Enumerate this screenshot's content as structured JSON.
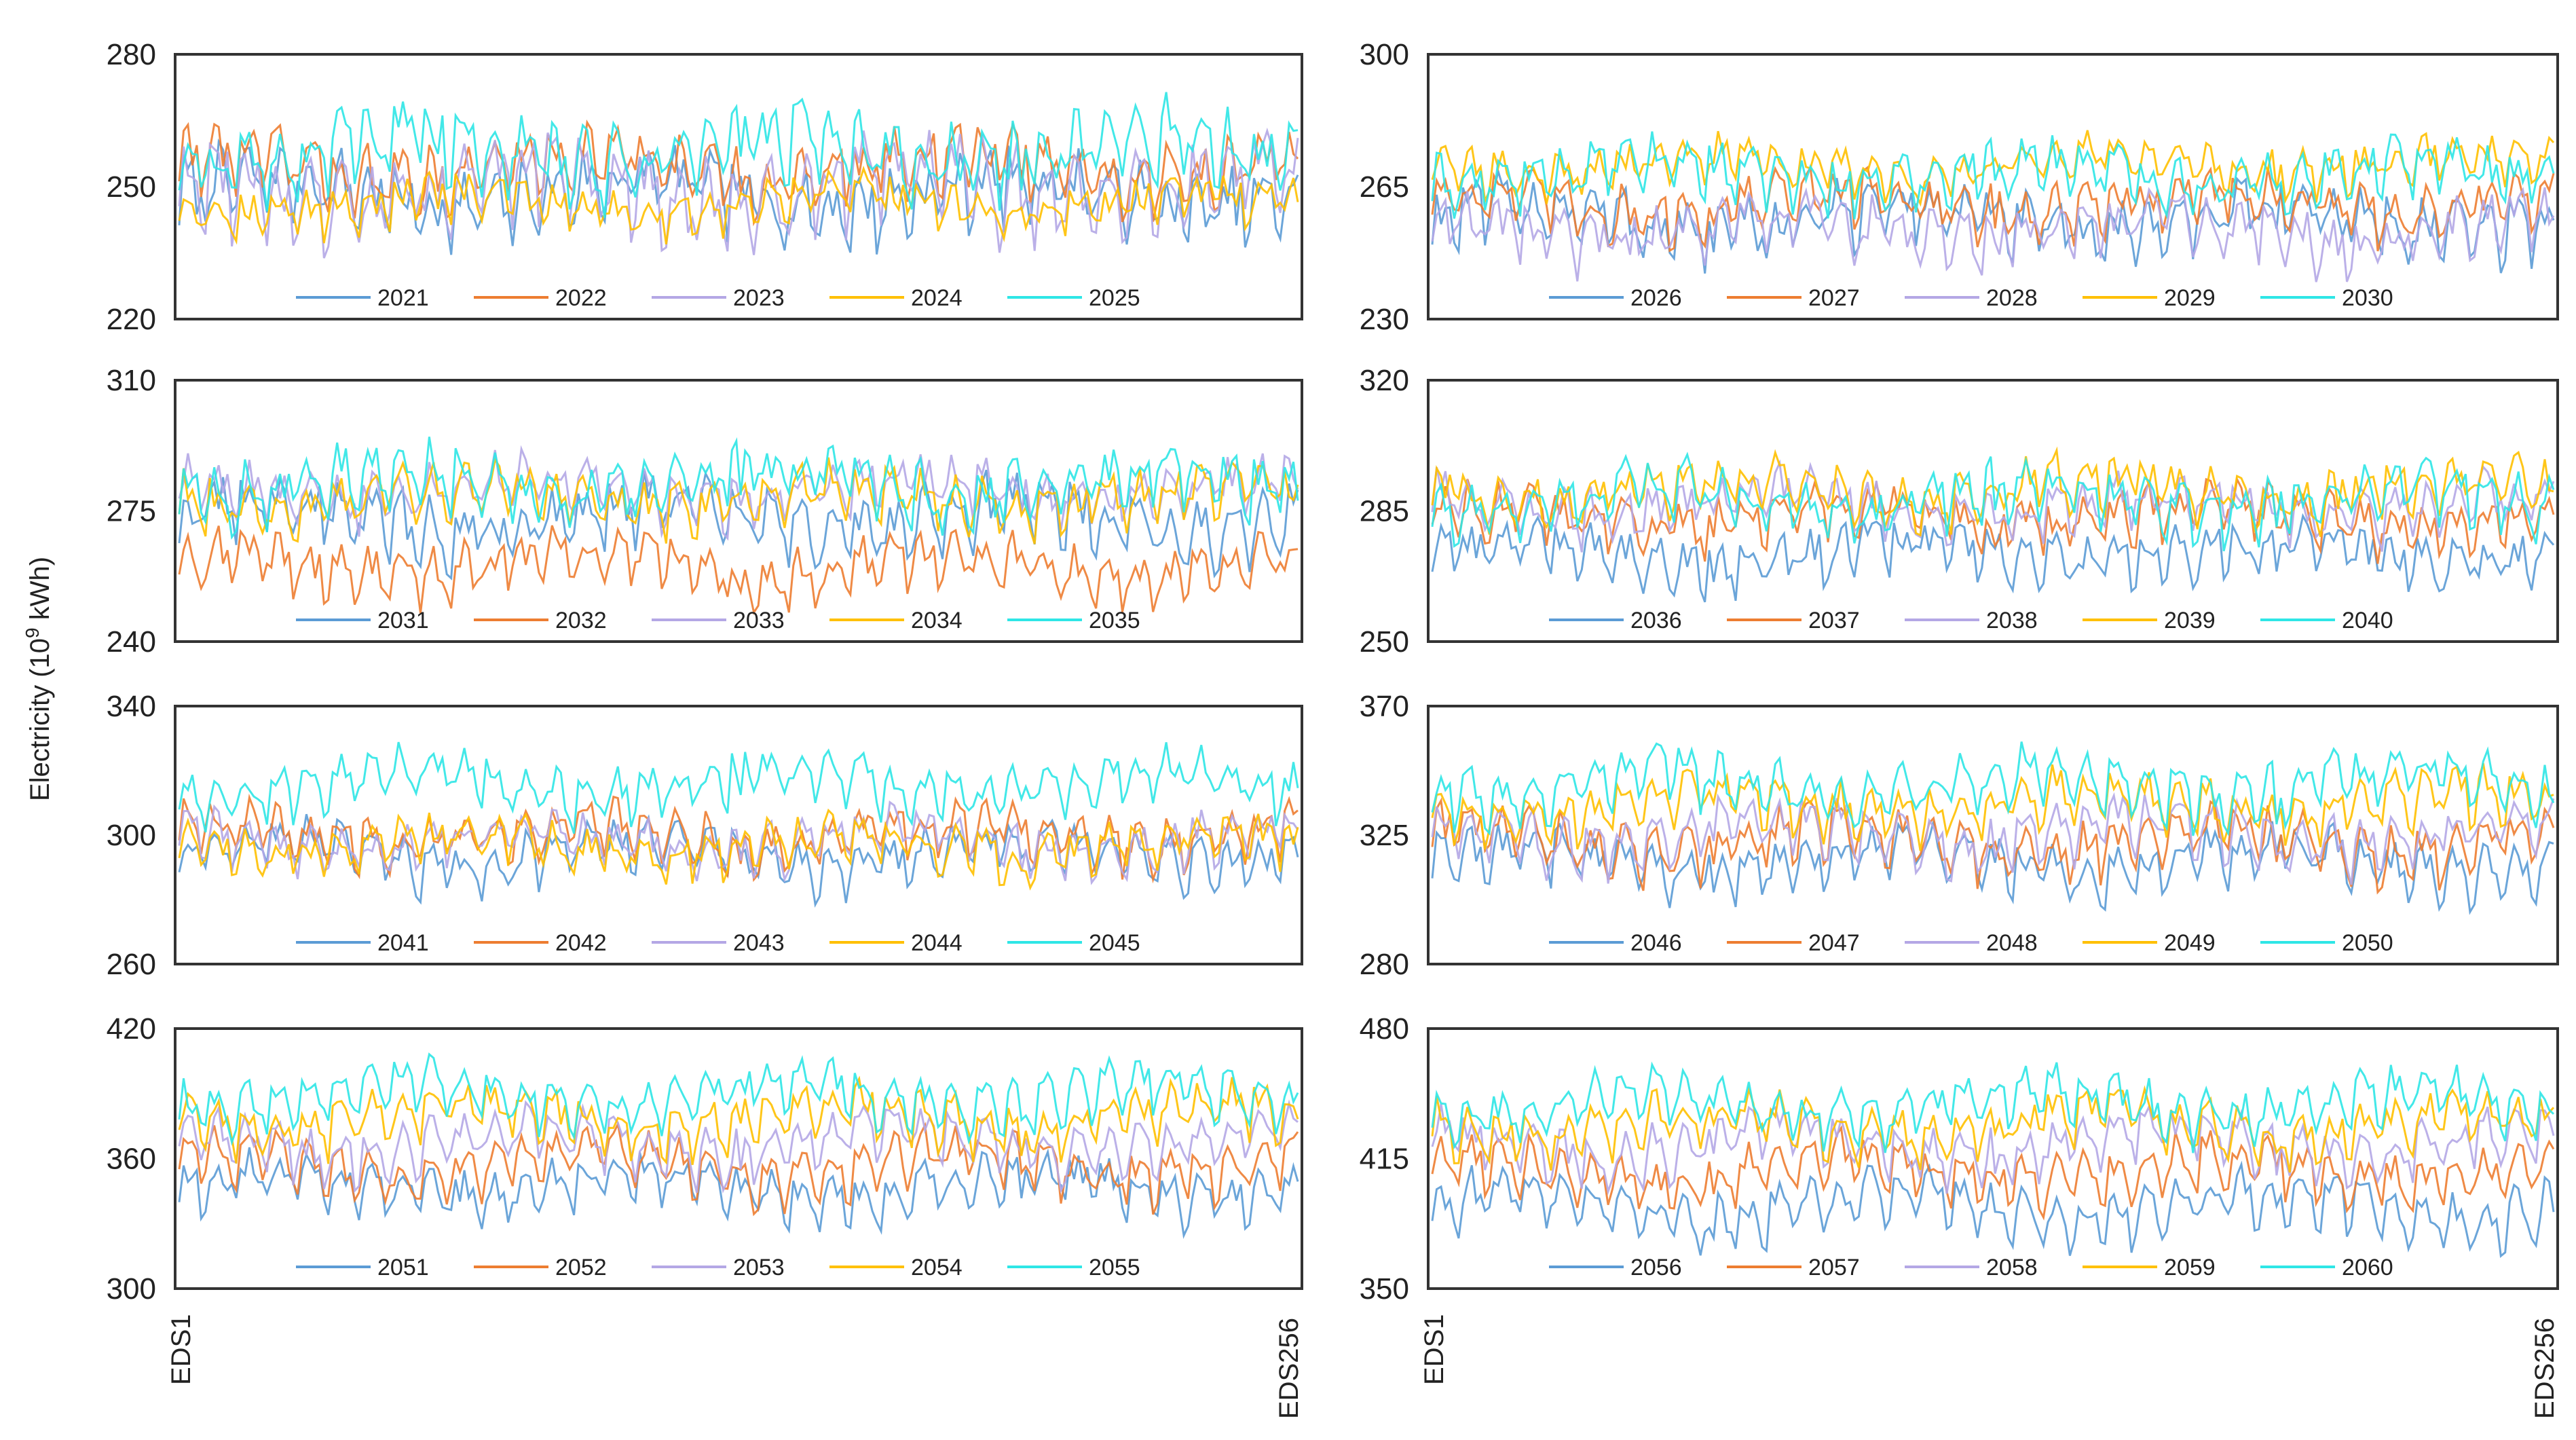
{
  "figure": {
    "ylabel_prefix": "Electricity (10",
    "ylabel_exp": "9",
    "ylabel_unit": " kWh)",
    "x_start_label": "EDS1",
    "x_end_label": "EDS256"
  },
  "colors": [
    "#5b9bd5",
    "#ed7d31",
    "#b4a7e5",
    "#ffc000",
    "#2ee6e6"
  ],
  "chart_data": [
    {
      "type": "line",
      "panel": 1,
      "x_count": 256,
      "ylim": [
        220,
        280
      ],
      "yticks": [
        "280",
        "250",
        "220"
      ],
      "series": [
        {
          "name": "2021",
          "base": 250,
          "amp": 7,
          "noise": 6
        },
        {
          "name": "2022",
          "base": 256,
          "amp": 6,
          "noise": 5
        },
        {
          "name": "2023",
          "base": 252,
          "amp": 9,
          "noise": 7
        },
        {
          "name": "2024",
          "base": 247,
          "amp": 4,
          "noise": 4
        },
        {
          "name": "2025",
          "base": 260,
          "amp": 7,
          "noise": 6
        }
      ]
    },
    {
      "type": "line",
      "panel": 2,
      "x_count": 256,
      "ylim": [
        230,
        300
      ],
      "yticks": [
        "300",
        "265",
        "230"
      ],
      "series": [
        {
          "name": "2026",
          "base": 258,
          "amp": 7,
          "noise": 6
        },
        {
          "name": "2027",
          "base": 262,
          "amp": 6,
          "noise": 5
        },
        {
          "name": "2028",
          "base": 255,
          "amp": 6,
          "noise": 6
        },
        {
          "name": "2029",
          "base": 272,
          "amp": 5,
          "noise": 4
        },
        {
          "name": "2030",
          "base": 270,
          "amp": 6,
          "noise": 5
        }
      ]
    },
    {
      "type": "line",
      "panel": 3,
      "x_count": 256,
      "ylim": [
        240,
        310
      ],
      "yticks": [
        "310",
        "275",
        "240"
      ],
      "series": [
        {
          "name": "2031",
          "base": 275,
          "amp": 8,
          "noise": 6
        },
        {
          "name": "2032",
          "base": 262,
          "amp": 6,
          "noise": 5
        },
        {
          "name": "2033",
          "base": 282,
          "amp": 6,
          "noise": 5
        },
        {
          "name": "2034",
          "base": 280,
          "amp": 6,
          "noise": 5
        },
        {
          "name": "2035",
          "base": 284,
          "amp": 7,
          "noise": 6
        }
      ]
    },
    {
      "type": "line",
      "panel": 4,
      "x_count": 256,
      "ylim": [
        250,
        320
      ],
      "yticks": [
        "320",
        "285",
        "250"
      ],
      "series": [
        {
          "name": "2036",
          "base": 275,
          "amp": 6,
          "noise": 5
        },
        {
          "name": "2037",
          "base": 285,
          "amp": 6,
          "noise": 5
        },
        {
          "name": "2038",
          "base": 288,
          "amp": 6,
          "noise": 5
        },
        {
          "name": "2039",
          "base": 292,
          "amp": 6,
          "noise": 5
        },
        {
          "name": "2040",
          "base": 290,
          "amp": 7,
          "noise": 5
        }
      ]
    },
    {
      "type": "line",
      "panel": 5,
      "x_count": 256,
      "ylim": [
        260,
        340
      ],
      "yticks": [
        "340",
        "300",
        "260"
      ],
      "series": [
        {
          "name": "2041",
          "base": 296,
          "amp": 8,
          "noise": 5
        },
        {
          "name": "2042",
          "base": 302,
          "amp": 7,
          "noise": 5
        },
        {
          "name": "2043",
          "base": 300,
          "amp": 7,
          "noise": 5
        },
        {
          "name": "2044",
          "base": 298,
          "amp": 6,
          "noise": 5
        },
        {
          "name": "2045",
          "base": 318,
          "amp": 8,
          "noise": 5
        }
      ]
    },
    {
      "type": "line",
      "panel": 6,
      "x_count": 256,
      "ylim": [
        280,
        370
      ],
      "yticks": [
        "370",
        "325",
        "280"
      ],
      "series": [
        {
          "name": "2046",
          "base": 318,
          "amp": 9,
          "noise": 6
        },
        {
          "name": "2047",
          "base": 325,
          "amp": 9,
          "noise": 6
        },
        {
          "name": "2048",
          "base": 328,
          "amp": 9,
          "noise": 6
        },
        {
          "name": "2049",
          "base": 338,
          "amp": 9,
          "noise": 6
        },
        {
          "name": "2050",
          "base": 345,
          "amp": 10,
          "noise": 6
        }
      ]
    },
    {
      "type": "line",
      "panel": 7,
      "x_count": 256,
      "ylim": [
        300,
        420
      ],
      "yticks": [
        "420",
        "360",
        "300"
      ],
      "series": [
        {
          "name": "2051",
          "base": 350,
          "amp": 12,
          "noise": 7
        },
        {
          "name": "2052",
          "base": 360,
          "amp": 12,
          "noise": 7
        },
        {
          "name": "2053",
          "base": 370,
          "amp": 12,
          "noise": 7
        },
        {
          "name": "2054",
          "base": 382,
          "amp": 12,
          "noise": 7
        },
        {
          "name": "2055",
          "base": 392,
          "amp": 12,
          "noise": 7
        }
      ]
    },
    {
      "type": "line",
      "panel": 8,
      "x_count": 256,
      "ylim": [
        350,
        480
      ],
      "yticks": [
        "480",
        "415",
        "350"
      ],
      "series": [
        {
          "name": "2056",
          "base": 395,
          "amp": 14,
          "noise": 8
        },
        {
          "name": "2057",
          "base": 412,
          "amp": 13,
          "noise": 8
        },
        {
          "name": "2058",
          "base": 425,
          "amp": 13,
          "noise": 8
        },
        {
          "name": "2059",
          "base": 435,
          "amp": 13,
          "noise": 8
        },
        {
          "name": "2060",
          "base": 445,
          "amp": 13,
          "noise": 8
        }
      ]
    }
  ]
}
